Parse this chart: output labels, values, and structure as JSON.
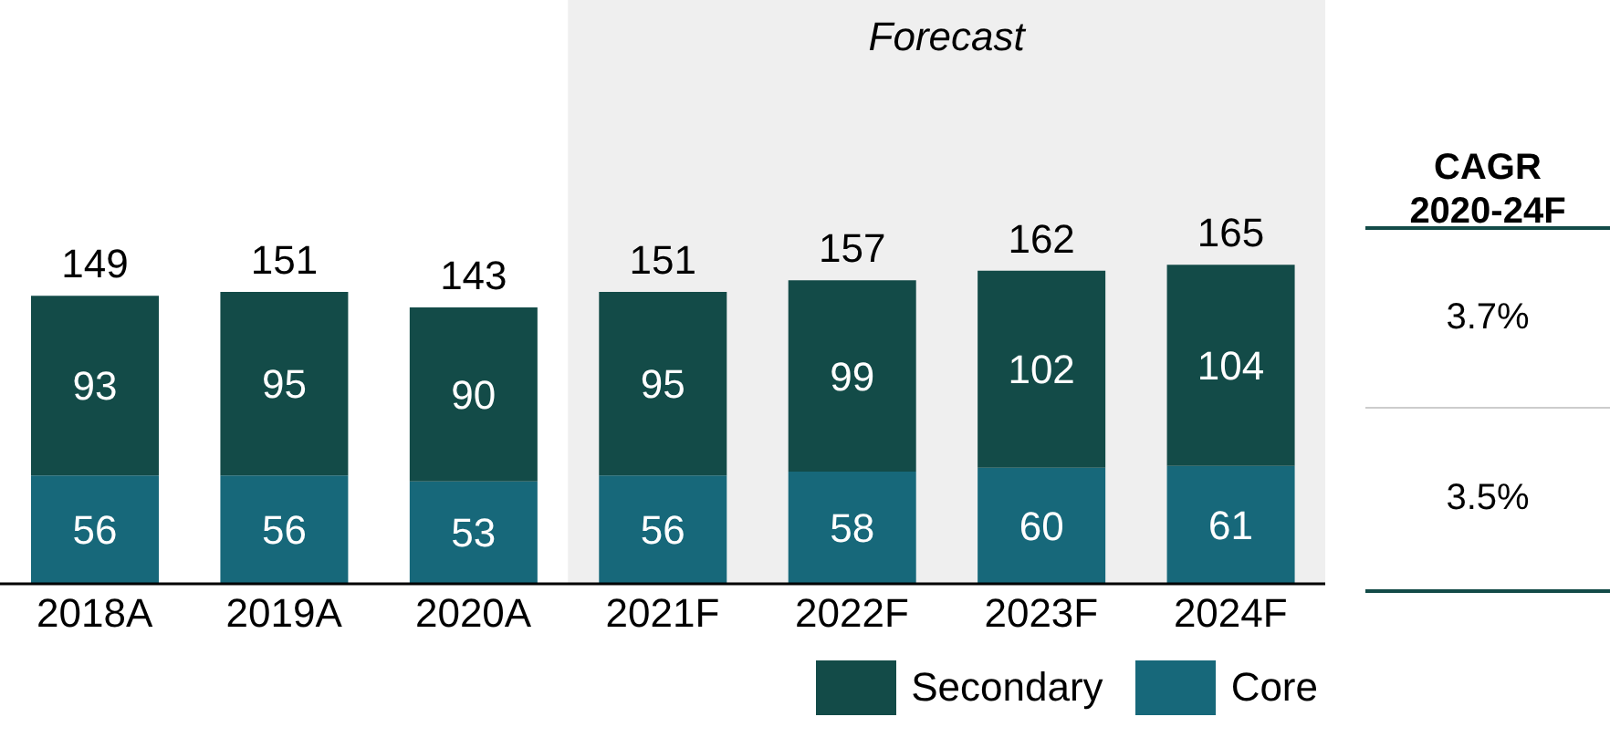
{
  "chart_data": {
    "type": "bar",
    "stacked": true,
    "categories": [
      "2018A",
      "2019A",
      "2020A",
      "2021F",
      "2022F",
      "2023F",
      "2024F"
    ],
    "series": [
      {
        "name": "Core",
        "color": "#17687a",
        "values": [
          56,
          56,
          53,
          56,
          58,
          60,
          61
        ]
      },
      {
        "name": "Secondary",
        "color": "#134b48",
        "values": [
          93,
          95,
          90,
          95,
          99,
          102,
          104
        ]
      }
    ],
    "data_labels": true,
    "totals": [
      "149",
      "151",
      "143",
      "151",
      "157",
      "162",
      "165"
    ],
    "bands": [
      {
        "axis": "x",
        "from": "2021F",
        "to": "2024F",
        "label": "Forecast",
        "color": "#efefef"
      }
    ],
    "annotations": [
      "CAGR 2020-24F",
      "3.7%",
      "3.5%"
    ],
    "legend": "bottom right",
    "grid": false
  }
}
